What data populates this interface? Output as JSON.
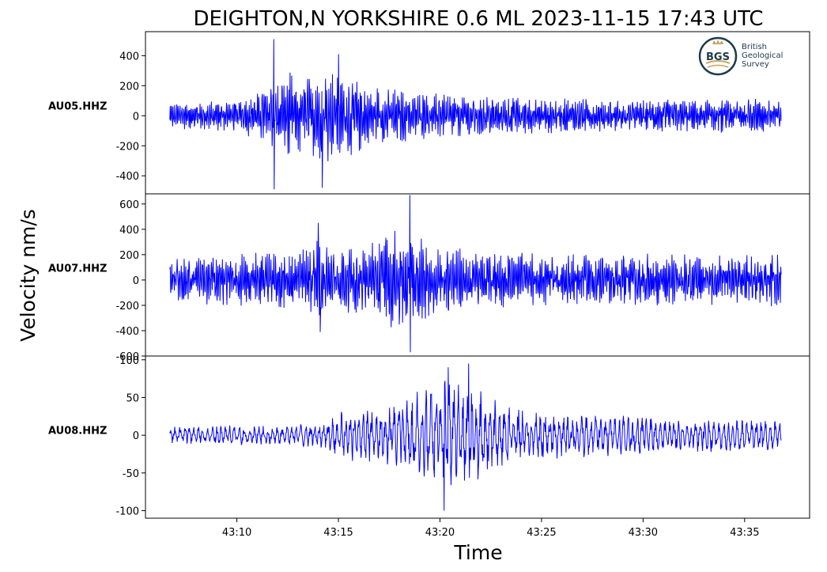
{
  "chart_data": {
    "type": "line",
    "title": "DEIGHTON,N YORKSHIRE 0.6 ML   2023-11-15 17:43 UTC",
    "xlabel": "Time",
    "ylabel": "Velocity nm/s",
    "x_range": [
      "43:06.7",
      "43:36.8"
    ],
    "xlim": [
      "43:05.5",
      "43:38.2"
    ],
    "x_ticks": [
      "43:10",
      "43:15",
      "43:20",
      "43:25",
      "43:30",
      "43:35"
    ],
    "line_color": "#0000ff",
    "grid": false,
    "legend": "none",
    "panels": [
      {
        "station": "AU05.HHZ",
        "ylim": [
          -520,
          560
        ],
        "y_ticks": [
          -400,
          -200,
          0,
          200,
          400
        ],
        "y_tick_labels": [
          "-400",
          "-200",
          "0",
          "200",
          "400"
        ],
        "peaks": [
          {
            "time": "43:11.8",
            "value": 510
          },
          {
            "time": "43:11.8",
            "value": -490
          },
          {
            "time": "43:14.2",
            "value": -480
          },
          {
            "time": "43:15.0",
            "value": 410
          }
        ],
        "envelope": [
          {
            "time": "43:07",
            "amp": 90
          },
          {
            "time": "43:10",
            "amp": 110
          },
          {
            "time": "43:11.5",
            "amp": 200
          },
          {
            "time": "43:13",
            "amp": 330
          },
          {
            "time": "43:15",
            "amp": 300
          },
          {
            "time": "43:17",
            "amp": 190
          },
          {
            "time": "43:20",
            "amp": 150
          },
          {
            "time": "43:25",
            "amp": 120
          },
          {
            "time": "43:30",
            "amp": 110
          },
          {
            "time": "43:36.8",
            "amp": 120
          }
        ]
      },
      {
        "station": "AU07.HHZ",
        "ylim": [
          -600,
          680
        ],
        "y_ticks": [
          -600,
          -400,
          -200,
          0,
          200,
          400,
          600
        ],
        "y_tick_labels": [
          "-600",
          "-400",
          "-200",
          "0",
          "200",
          "400",
          "600"
        ],
        "peaks": [
          {
            "time": "43:18.5",
            "value": 670
          },
          {
            "time": "43:18.5",
            "value": -570
          },
          {
            "time": "43:14.0",
            "value": 450
          },
          {
            "time": "43:14.1",
            "value": -410
          }
        ],
        "envelope": [
          {
            "time": "43:07",
            "amp": 180
          },
          {
            "time": "43:10",
            "amp": 210
          },
          {
            "time": "43:13",
            "amp": 230
          },
          {
            "time": "43:14",
            "amp": 330
          },
          {
            "time": "43:16",
            "amp": 260
          },
          {
            "time": "43:18",
            "amp": 420
          },
          {
            "time": "43:19.5",
            "amp": 300
          },
          {
            "time": "43:22",
            "amp": 220
          },
          {
            "time": "43:28",
            "amp": 210
          },
          {
            "time": "43:36.8",
            "amp": 210
          }
        ]
      },
      {
        "station": "AU08.HHZ",
        "ylim": [
          -110,
          105
        ],
        "y_ticks": [
          -100,
          -50,
          0,
          50,
          100
        ],
        "y_tick_labels": [
          "-100",
          "-50",
          "0",
          "50",
          "100"
        ],
        "peaks": [
          {
            "time": "43:20.2",
            "value": -100
          },
          {
            "time": "43:20.4",
            "value": 90
          },
          {
            "time": "43:21.4",
            "value": 95
          }
        ],
        "envelope": [
          {
            "time": "43:07",
            "amp": 12
          },
          {
            "time": "43:12",
            "amp": 14
          },
          {
            "time": "43:14",
            "amp": 16
          },
          {
            "time": "43:15",
            "amp": 32
          },
          {
            "time": "43:18",
            "amp": 45
          },
          {
            "time": "43:20",
            "amp": 75
          },
          {
            "time": "43:22",
            "amp": 60
          },
          {
            "time": "43:24",
            "amp": 35
          },
          {
            "time": "43:30",
            "amp": 25
          },
          {
            "time": "43:36.8",
            "amp": 20
          }
        ]
      }
    ]
  },
  "logo": {
    "initials": "BGS",
    "lines": [
      "British",
      "Geological",
      "Survey"
    ],
    "color": "#1d3b4c",
    "accent": "#c9a45c"
  }
}
